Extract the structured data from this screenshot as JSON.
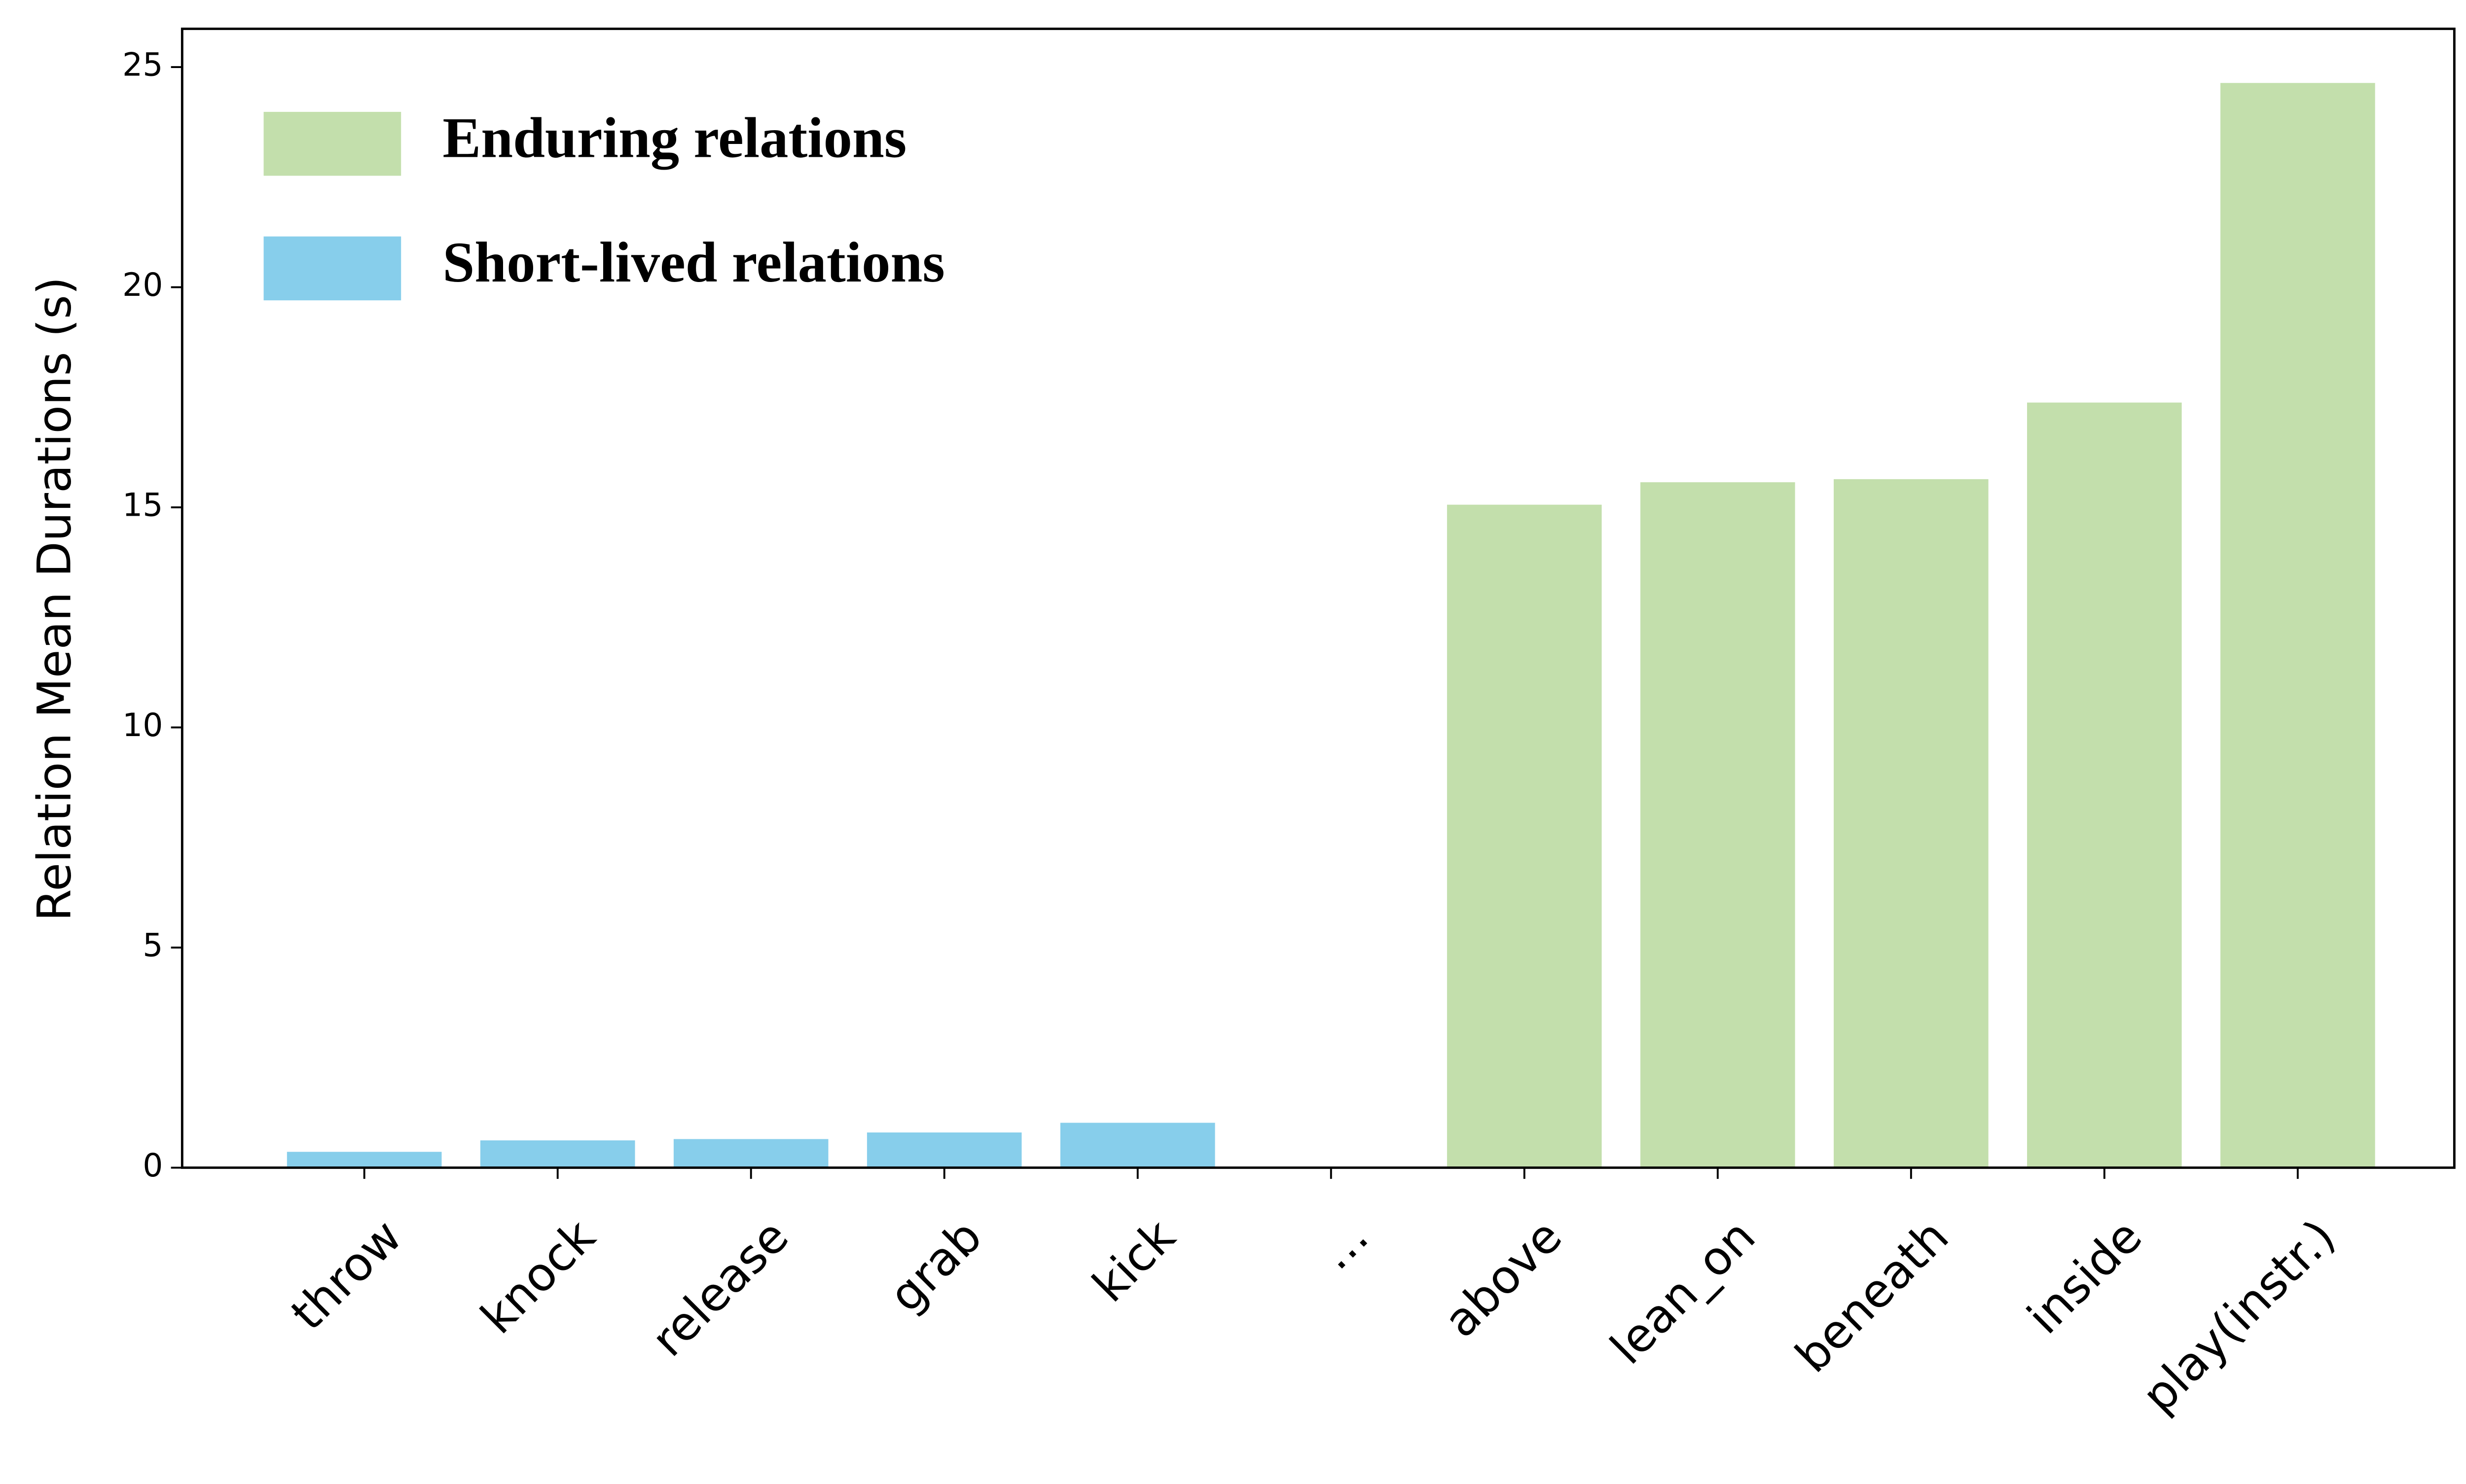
{
  "chart_data": {
    "type": "bar",
    "y_label": "Relation Mean Durations (s)",
    "categories": [
      "throw",
      "knock",
      "release",
      "grab",
      "kick",
      "…",
      "above",
      "lean_on",
      "beneath",
      "inside",
      "play(instr.)"
    ],
    "series": [
      {
        "name": "Enduring relations",
        "color": "#c3dfac",
        "values": [
          null,
          null,
          null,
          null,
          null,
          null,
          15.06,
          15.57,
          15.64,
          17.38,
          24.64
        ]
      },
      {
        "name": "Short-lived relations",
        "color": "#87ceeb",
        "values": [
          0.36,
          0.62,
          0.65,
          0.8,
          1.02,
          null,
          null,
          null,
          null,
          null,
          null
        ]
      }
    ],
    "ylim": [
      0,
      25.87
    ],
    "yticks": [
      0,
      5,
      10,
      15,
      20,
      25
    ],
    "legend": "upper left"
  }
}
